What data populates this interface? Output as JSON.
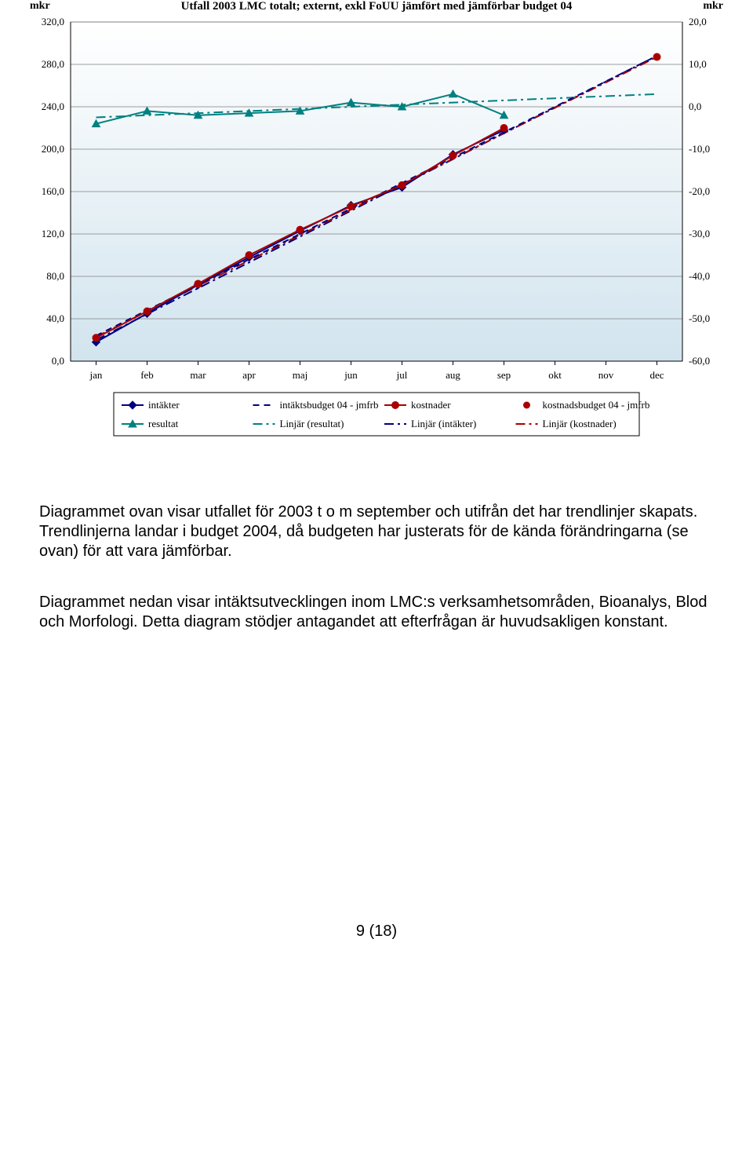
{
  "chart": {
    "type": "line",
    "title": "Utfall 2003 LMC totalt; externt, exkl FoUU jämfört med jämförbar budget 04",
    "title_fontsize": 15,
    "axis_font": "Georgia",
    "y_left_label": "mkr",
    "y_right_label": "mkr",
    "plot_bg_top": "#ffffff",
    "plot_bg_bottom": "#d2e4ee",
    "grid_color": "#808080",
    "axis_color": "#000000",
    "categories": [
      "jan",
      "feb",
      "mar",
      "apr",
      "maj",
      "jun",
      "jul",
      "aug",
      "sep",
      "okt",
      "nov",
      "dec"
    ],
    "y_left": {
      "min": 0.0,
      "max": 320.0,
      "step": 40.0,
      "ticks": [
        "0,0",
        "40,0",
        "80,0",
        "120,0",
        "160,0",
        "200,0",
        "240,0",
        "280,0",
        "320,0"
      ]
    },
    "y_right": {
      "min": -60.0,
      "max": 20.0,
      "step": 10.0,
      "ticks": [
        "-60,0",
        "-50,0",
        "-40,0",
        "-30,0",
        "-20,0",
        "-10,0",
        "0,0",
        "10,0",
        "20,0"
      ]
    },
    "series": {
      "intakter": {
        "label": "intäkter",
        "axis": "left",
        "color": "#000080",
        "marker": "diamond",
        "line_width": 2,
        "values": [
          18,
          45,
          72,
          98,
          123,
          147,
          164,
          195,
          218,
          null,
          null,
          null
        ]
      },
      "intaktsbudget": {
        "label": "intäktsbudget 04 - jmfrb",
        "axis": "left",
        "color": "#000080",
        "marker": "short-dash",
        "style": "short-dash",
        "line_width": 2,
        "values": [
          24,
          48,
          72,
          96,
          120,
          144,
          168,
          192,
          216,
          240,
          264,
          288
        ]
      },
      "kostnader": {
        "label": "kostnader",
        "axis": "left",
        "color": "#aa0000",
        "marker": "circle",
        "line_width": 2,
        "values": [
          22,
          47,
          73,
          100,
          124,
          146,
          166,
          194,
          220,
          null,
          null,
          null
        ]
      },
      "kostnadsbudget": {
        "label": "kostnadsbudget 04 - jmfrb",
        "axis": "left",
        "color": "#aa0000",
        "marker": null,
        "line_width": 0,
        "point_only": true,
        "values": [
          null,
          null,
          null,
          null,
          null,
          null,
          null,
          null,
          null,
          null,
          null,
          287
        ]
      },
      "resultat": {
        "label": "resultat",
        "axis": "right",
        "color": "#008080",
        "marker": "triangle",
        "line_width": 2,
        "values": [
          -4.0,
          -1.0,
          -2.0,
          -1.5,
          -1.0,
          1.0,
          0.0,
          3.0,
          -2.0,
          null,
          null,
          null
        ]
      },
      "linjar_resultat": {
        "label": "Linjär (resultat)",
        "axis": "right",
        "color": "#008080",
        "style": "dash-dot",
        "line_width": 2,
        "values": [
          -2.5,
          -2.0,
          -1.5,
          -1.0,
          -0.5,
          0.0,
          0.5,
          1.0,
          1.5,
          2.0,
          2.5,
          3.0
        ]
      },
      "linjar_intakter": {
        "label": "Linjär (intäkter)",
        "axis": "left",
        "color": "#000080",
        "style": "dash-dot",
        "line_width": 2,
        "values": [
          20,
          44.4,
          68.8,
          93.1,
          117.5,
          141.9,
          166.3,
          190.6,
          215,
          239.4,
          263.8,
          288.1
        ]
      },
      "linjar_kostnader": {
        "label": "Linjär (kostnader)",
        "axis": "left",
        "color": "#aa0000",
        "style": "dash-dot",
        "line_width": 2,
        "values": [
          23,
          47,
          71,
          95,
          119,
          143,
          167,
          191,
          215,
          239,
          263,
          287
        ]
      }
    },
    "legend": {
      "border_color": "#000000",
      "bg_color": "#ffffff",
      "rows": [
        [
          "intakter",
          "intaktsbudget",
          "kostnader",
          "kostnadsbudget"
        ],
        [
          "resultat",
          "linjar_resultat",
          "linjar_intakter",
          "linjar_kostnader"
        ]
      ]
    }
  },
  "paragraph1": "Diagrammet ovan visar utfallet för 2003 t o m september och utifrån det har trendlinjer skapats. Trendlinjerna landar i budget 2004, då budgeten har justerats för de kända förändringarna (se ovan) för att vara jämförbar.",
  "paragraph2": "Diagrammet nedan visar intäktsutvecklingen inom LMC:s verksamhetsområden, Bioanalys, Blod och Morfologi. Detta diagram stödjer antagandet att efterfrågan är huvudsakligen konstant.",
  "page_number": "9 (18)"
}
